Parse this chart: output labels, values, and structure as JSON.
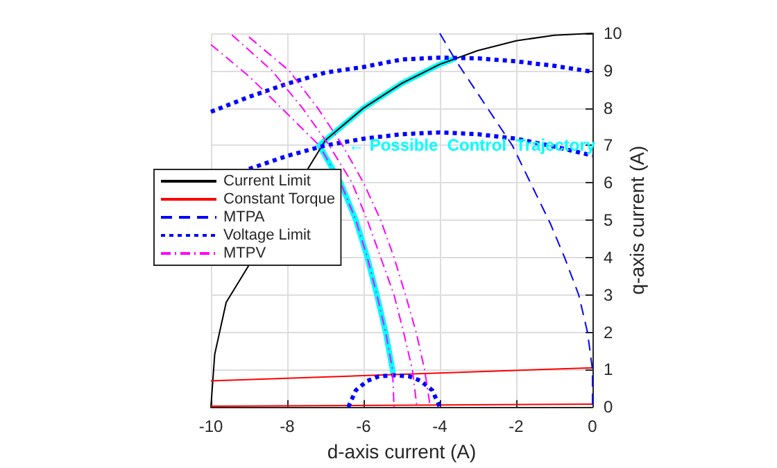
{
  "chart_data": {
    "type": "line",
    "xlabel": "d-axis current (A)",
    "ylabel": "q-axis current (A)",
    "xlim": [
      -10,
      0
    ],
    "xticks": [
      -10,
      -8,
      -6,
      -4,
      -2,
      0
    ],
    "ylim": [
      0,
      10
    ],
    "yticks": [
      0,
      1,
      2,
      3,
      4,
      5,
      6,
      7,
      8,
      9,
      10
    ],
    "grid": true,
    "legend": "left",
    "marker": "none",
    "annotations": [
      {
        "text": "← Possible  Control  Trajectory",
        "x": -6.4,
        "y": 7
      }
    ],
    "series": [
      {
        "name": "Current Limit",
        "color": "#000000",
        "line_style": "solid",
        "x": [
          -10,
          -9.9,
          -9.6,
          -7,
          -6,
          -5,
          -4,
          -3,
          -2,
          -1,
          0
        ],
        "values": [
          0,
          1.41,
          2.8,
          7.14,
          8,
          8.66,
          9.17,
          9.54,
          9.8,
          9.95,
          10
        ]
      },
      {
        "name": "Constant Torque",
        "color": "#ff0000",
        "line_style": "solid",
        "x": [
          -10,
          0
        ],
        "values": [
          0.7,
          1.05
        ]
      },
      {
        "color": "#ff0000",
        "line_style": "solid",
        "x": [
          -10,
          0
        ],
        "values": [
          0.02,
          0.08
        ]
      },
      {
        "name": "MTPA",
        "color": "#0000ff",
        "line_style": "dashed",
        "x": [
          -4.0,
          -3.6,
          -2.1,
          -1.1,
          -0.73,
          -0.36,
          -0.13,
          0,
          0
        ],
        "values": [
          10,
          9.3,
          7,
          4.9,
          4,
          3,
          2,
          1,
          0
        ]
      },
      {
        "name": "Voltage Limit",
        "color": "#0000ff",
        "line_style": "dotted",
        "x": [
          -10,
          -9,
          -8,
          -7,
          -6,
          -5,
          -4,
          -3,
          -2,
          -1,
          0,
          null,
          -9,
          -8,
          -7,
          -6,
          -5,
          -4,
          -3,
          -2,
          -1,
          0,
          null,
          -6.4,
          -6.2,
          -5.9,
          -5.6,
          -5.2,
          -4.8,
          -4.5,
          -4.2,
          -4.0
        ],
        "values": [
          7.9,
          8.3,
          8.65,
          8.95,
          9.1,
          9.3,
          9.35,
          9.33,
          9.25,
          9.13,
          8.97,
          null,
          6.37,
          6.72,
          7.0,
          7.18,
          7.3,
          7.35,
          7.3,
          7.18,
          6.97,
          6.73,
          null,
          0,
          0.45,
          0.7,
          0.82,
          0.85,
          0.82,
          0.7,
          0.45,
          0
        ]
      },
      {
        "name": "MTPV",
        "color": "#ff00ff",
        "line_style": "dashdot",
        "x": [
          -10,
          -9,
          -8,
          -7.16,
          -6.6,
          -6.2,
          -5.9,
          -5.65,
          -5.42,
          -5.24,
          -5.2,
          null,
          -9.45,
          -8.4,
          -7.6,
          -6.9,
          -6.3,
          -5.9,
          -5.55,
          -5.2,
          -4.95,
          -4.72,
          -4.6,
          null,
          -9.0,
          -7.95,
          -7.2,
          -6.55,
          -6.0,
          -5.55,
          -5.2,
          -4.9,
          -4.62,
          -4.4,
          -4.25
        ],
        "values": [
          9.7,
          8.85,
          7.85,
          7,
          6,
          5,
          4,
          3,
          2,
          1,
          0,
          null,
          9.96,
          9,
          8,
          7,
          6,
          5,
          4,
          3,
          2,
          1,
          0,
          null,
          9.9,
          9,
          8,
          7,
          6,
          5,
          4,
          3,
          2,
          1,
          0
        ]
      },
      {
        "color": "#00ffff",
        "line_style": "solid",
        "x": [
          -3.6,
          -4,
          -5,
          -6,
          -7,
          -7.16,
          -6.6,
          -6.2,
          -5.9,
          -5.65,
          -5.42,
          -5.24,
          -5.22
        ],
        "values": [
          9.33,
          9.17,
          8.66,
          8,
          7.14,
          7,
          6,
          5,
          4,
          3,
          2,
          1,
          0.85
        ]
      }
    ]
  }
}
